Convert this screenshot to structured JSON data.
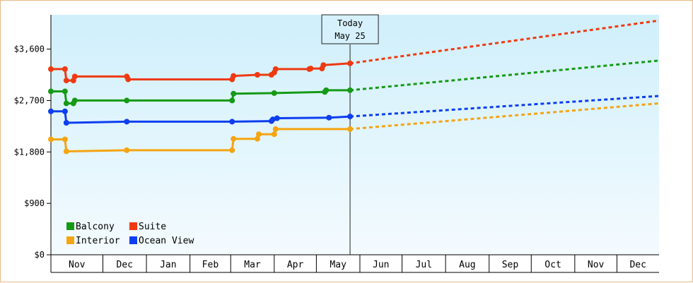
{
  "chart_data": {
    "type": "line",
    "title": "",
    "xlabel": "",
    "ylabel": "",
    "ylim": [
      0,
      4200
    ],
    "y_ticks": [
      {
        "value": 0,
        "label": "$0"
      },
      {
        "value": 900,
        "label": "$900"
      },
      {
        "value": 1800,
        "label": "$1,800"
      },
      {
        "value": 2700,
        "label": "$2,700"
      },
      {
        "value": 3600,
        "label": "$3,600"
      }
    ],
    "x_range": [
      "2023-10-25",
      "2024-12-31"
    ],
    "x_ticks": [
      {
        "label": "Nov",
        "start": "2023-10-25",
        "end": "2023-12-01"
      },
      {
        "label": "Dec",
        "start": "2023-12-01",
        "end": "2024-01-01"
      },
      {
        "label": "Jan",
        "start": "2024-01-01",
        "end": "2024-02-01"
      },
      {
        "label": "Feb",
        "start": "2024-02-01",
        "end": "2024-03-01"
      },
      {
        "label": "Mar",
        "start": "2024-03-01",
        "end": "2024-04-01"
      },
      {
        "label": "Apr",
        "start": "2024-04-01",
        "end": "2024-05-01"
      },
      {
        "label": "May",
        "start": "2024-05-01",
        "end": "2024-06-01"
      },
      {
        "label": "Jun",
        "start": "2024-06-01",
        "end": "2024-07-01"
      },
      {
        "label": "Jul",
        "start": "2024-07-01",
        "end": "2024-08-01"
      },
      {
        "label": "Aug",
        "start": "2024-08-01",
        "end": "2024-09-01"
      },
      {
        "label": "Sep",
        "start": "2024-09-01",
        "end": "2024-10-01"
      },
      {
        "label": "Oct",
        "start": "2024-10-01",
        "end": "2024-11-01"
      },
      {
        "label": "Nov",
        "start": "2024-11-01",
        "end": "2024-12-01"
      },
      {
        "label": "Dec",
        "start": "2024-12-01",
        "end": "2024-12-31"
      }
    ],
    "today": {
      "date": "2024-05-25",
      "label_line1": "Today",
      "label_line2": "May 25"
    },
    "legend_position": "bottom-left",
    "grid": false,
    "series": [
      {
        "name": "Balcony",
        "color": "#159a15",
        "history": [
          [
            "2023-10-25",
            2860
          ],
          [
            "2023-11-04",
            2860
          ],
          [
            "2023-11-05",
            2650
          ],
          [
            "2023-11-10",
            2650
          ],
          [
            "2023-11-11",
            2700
          ],
          [
            "2023-12-18",
            2700
          ],
          [
            "2024-03-02",
            2700
          ],
          [
            "2024-03-03",
            2820
          ],
          [
            "2024-04-01",
            2830
          ],
          [
            "2024-05-07",
            2850
          ],
          [
            "2024-05-08",
            2880
          ],
          [
            "2024-05-25",
            2880
          ]
        ],
        "markers": [
          [
            "2023-10-25",
            2860
          ],
          [
            "2023-11-04",
            2860
          ],
          [
            "2023-11-05",
            2650
          ],
          [
            "2023-11-10",
            2650
          ],
          [
            "2023-11-11",
            2700
          ],
          [
            "2023-12-18",
            2700
          ],
          [
            "2024-03-02",
            2700
          ],
          [
            "2024-03-03",
            2820
          ],
          [
            "2024-04-01",
            2830
          ],
          [
            "2024-05-07",
            2850
          ],
          [
            "2024-05-08",
            2880
          ],
          [
            "2024-05-25",
            2880
          ]
        ],
        "forecast": [
          [
            "2024-05-25",
            2880
          ],
          [
            "2024-12-31",
            3400
          ]
        ]
      },
      {
        "name": "Suite",
        "color": "#ee3a12",
        "history": [
          [
            "2023-10-25",
            3250
          ],
          [
            "2023-11-04",
            3250
          ],
          [
            "2023-11-05",
            3050
          ],
          [
            "2023-11-10",
            3050
          ],
          [
            "2023-11-11",
            3120
          ],
          [
            "2023-12-18",
            3120
          ],
          [
            "2023-12-19",
            3070
          ],
          [
            "2024-03-02",
            3070
          ],
          [
            "2024-03-03",
            3130
          ],
          [
            "2024-03-20",
            3150
          ],
          [
            "2024-03-30",
            3150
          ],
          [
            "2024-04-01",
            3190
          ],
          [
            "2024-04-02",
            3250
          ],
          [
            "2024-04-26",
            3250
          ],
          [
            "2024-04-27",
            3260
          ],
          [
            "2024-05-05",
            3260
          ],
          [
            "2024-05-06",
            3320
          ],
          [
            "2024-05-25",
            3350
          ]
        ],
        "markers": [
          [
            "2023-10-25",
            3250
          ],
          [
            "2023-11-04",
            3250
          ],
          [
            "2023-11-05",
            3050
          ],
          [
            "2023-11-10",
            3050
          ],
          [
            "2023-11-11",
            3120
          ],
          [
            "2023-12-18",
            3120
          ],
          [
            "2023-12-19",
            3070
          ],
          [
            "2024-03-02",
            3070
          ],
          [
            "2024-03-03",
            3130
          ],
          [
            "2024-03-20",
            3150
          ],
          [
            "2024-03-30",
            3150
          ],
          [
            "2024-04-01",
            3190
          ],
          [
            "2024-04-02",
            3250
          ],
          [
            "2024-04-26",
            3250
          ],
          [
            "2024-04-27",
            3260
          ],
          [
            "2024-05-05",
            3260
          ],
          [
            "2024-05-06",
            3320
          ],
          [
            "2024-05-25",
            3350
          ]
        ],
        "forecast": [
          [
            "2024-05-25",
            3350
          ],
          [
            "2024-12-31",
            4100
          ]
        ]
      },
      {
        "name": "Interior",
        "color": "#f5a412",
        "history": [
          [
            "2023-10-25",
            2020
          ],
          [
            "2023-11-04",
            2020
          ],
          [
            "2023-11-05",
            1810
          ],
          [
            "2023-12-18",
            1830
          ],
          [
            "2024-03-02",
            1830
          ],
          [
            "2024-03-03",
            2030
          ],
          [
            "2024-03-20",
            2030
          ],
          [
            "2024-03-21",
            2110
          ],
          [
            "2024-04-01",
            2110
          ],
          [
            "2024-04-02",
            2200
          ],
          [
            "2024-05-25",
            2200
          ]
        ],
        "markers": [
          [
            "2023-10-25",
            2020
          ],
          [
            "2023-11-04",
            2020
          ],
          [
            "2023-11-05",
            1810
          ],
          [
            "2023-12-18",
            1830
          ],
          [
            "2024-03-02",
            1830
          ],
          [
            "2024-03-03",
            2030
          ],
          [
            "2024-03-20",
            2030
          ],
          [
            "2024-03-21",
            2110
          ],
          [
            "2024-04-01",
            2110
          ],
          [
            "2024-04-02",
            2200
          ],
          [
            "2024-05-25",
            2200
          ]
        ],
        "forecast": [
          [
            "2024-05-25",
            2200
          ],
          [
            "2024-12-31",
            2650
          ]
        ]
      },
      {
        "name": "Ocean View",
        "color": "#0d3ef0",
        "history": [
          [
            "2023-10-25",
            2510
          ],
          [
            "2023-11-04",
            2510
          ],
          [
            "2023-11-05",
            2310
          ],
          [
            "2023-12-18",
            2330
          ],
          [
            "2024-03-02",
            2330
          ],
          [
            "2024-03-30",
            2340
          ],
          [
            "2024-03-31",
            2370
          ],
          [
            "2024-04-03",
            2390
          ],
          [
            "2024-05-10",
            2400
          ],
          [
            "2024-05-25",
            2420
          ]
        ],
        "markers": [
          [
            "2023-10-25",
            2510
          ],
          [
            "2023-11-04",
            2510
          ],
          [
            "2023-11-05",
            2310
          ],
          [
            "2023-12-18",
            2330
          ],
          [
            "2024-03-02",
            2330
          ],
          [
            "2024-03-30",
            2340
          ],
          [
            "2024-03-31",
            2370
          ],
          [
            "2024-04-03",
            2390
          ],
          [
            "2024-05-10",
            2400
          ],
          [
            "2024-05-25",
            2420
          ]
        ],
        "forecast": [
          [
            "2024-05-25",
            2420
          ],
          [
            "2024-12-31",
            2780
          ]
        ]
      }
    ]
  }
}
